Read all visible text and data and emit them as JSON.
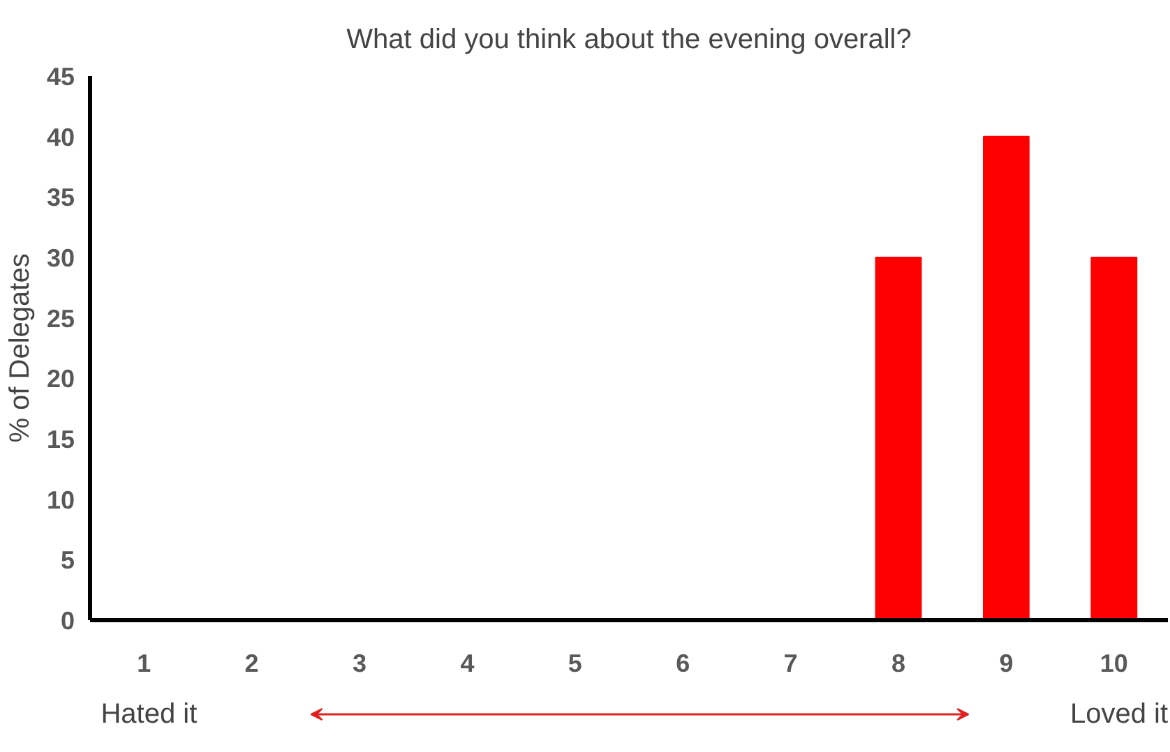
{
  "chart_data": {
    "type": "bar",
    "title": "What did you think about the evening overall?",
    "ylabel": "% of Delegates",
    "categories": [
      "1",
      "2",
      "3",
      "4",
      "5",
      "6",
      "7",
      "8",
      "9",
      "10"
    ],
    "values": [
      0,
      0,
      0,
      0,
      0,
      0,
      0,
      30,
      40,
      30
    ],
    "color": "#ff0000",
    "ylim": [
      0,
      45
    ],
    "yticks": [
      0,
      5,
      10,
      15,
      20,
      25,
      30,
      35,
      40,
      45
    ],
    "grid": false,
    "annotations": [
      "Hated it",
      "Loved it"
    ]
  }
}
